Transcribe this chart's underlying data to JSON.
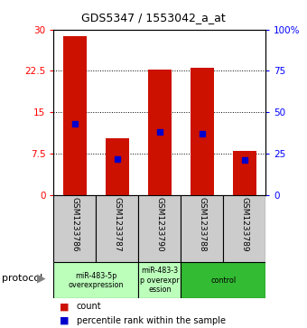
{
  "title": "GDS5347 / 1553042_a_at",
  "samples": [
    "GSM1233786",
    "GSM1233787",
    "GSM1233790",
    "GSM1233788",
    "GSM1233789"
  ],
  "counts": [
    28.8,
    10.3,
    22.7,
    23.0,
    8.0
  ],
  "percentile_ranks": [
    43,
    22,
    38,
    37,
    21
  ],
  "ylim_left": [
    0,
    30
  ],
  "ylim_right": [
    0,
    100
  ],
  "yticks_left": [
    0,
    7.5,
    15,
    22.5,
    30
  ],
  "ytick_labels_left": [
    "0",
    "7.5",
    "15",
    "22.5",
    "30"
  ],
  "yticks_right": [
    0,
    25,
    50,
    75,
    100
  ],
  "ytick_labels_right": [
    "0",
    "25",
    "50",
    "75",
    "100%"
  ],
  "bar_color": "#cc1100",
  "percentile_color": "#0000cc",
  "groups": [
    {
      "start": 0,
      "end": 2,
      "label": "miR-483-5p\noverexpression",
      "color": "#bbffbb"
    },
    {
      "start": 2,
      "end": 3,
      "label": "miR-483-3\np overexpr\nession",
      "color": "#bbffbb"
    },
    {
      "start": 3,
      "end": 5,
      "label": "control",
      "color": "#33bb33"
    }
  ],
  "legend_count_label": "count",
  "legend_percentile_label": "percentile rank within the sample",
  "protocol_label": "protocol",
  "bar_width": 0.55,
  "sample_box_color": "#cccccc",
  "fig_bg": "#ffffff"
}
